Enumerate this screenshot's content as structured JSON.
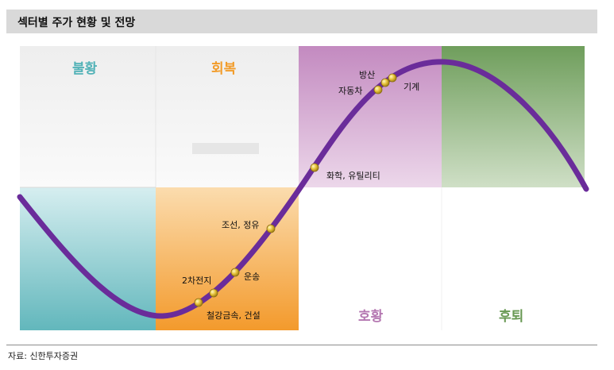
{
  "title": "섹터별 주가 현황 및 전망",
  "phases": {
    "recession": "불황",
    "recovery": "회복",
    "boom": "호황",
    "slowdown": "후퇴"
  },
  "sectors": {
    "defense": "방산",
    "auto": "자동차",
    "machinery": "기계",
    "chem_util": "화학, 유틸리티",
    "ship_refine": "조선, 정유",
    "transport": "운송",
    "battery": "2차전지",
    "steel_const": "철강금속, 건설"
  },
  "source": "자료: 신한투자증권",
  "colors": {
    "curve": "#6a2c9a",
    "recession": "#6bbbc0",
    "recovery": "#f5a13a",
    "boom": "#c189bd",
    "slowdown": "#75a162",
    "recession_text": "#52b2b7",
    "recovery_text": "#f29c2a",
    "boom_text": "#b477b1",
    "slowdown_text": "#6a9a55"
  }
}
